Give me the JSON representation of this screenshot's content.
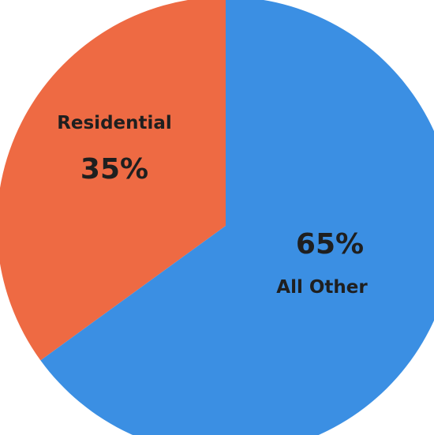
{
  "chart_data": {
    "type": "pie",
    "slices": [
      {
        "label": "Residential",
        "value": 35,
        "value_label": "35%",
        "color": "#ee6a43"
      },
      {
        "label": "All Other",
        "value": 65,
        "value_label": "65%",
        "color": "#3b8fe3"
      }
    ],
    "legend": "none",
    "label_placement": "inside"
  }
}
